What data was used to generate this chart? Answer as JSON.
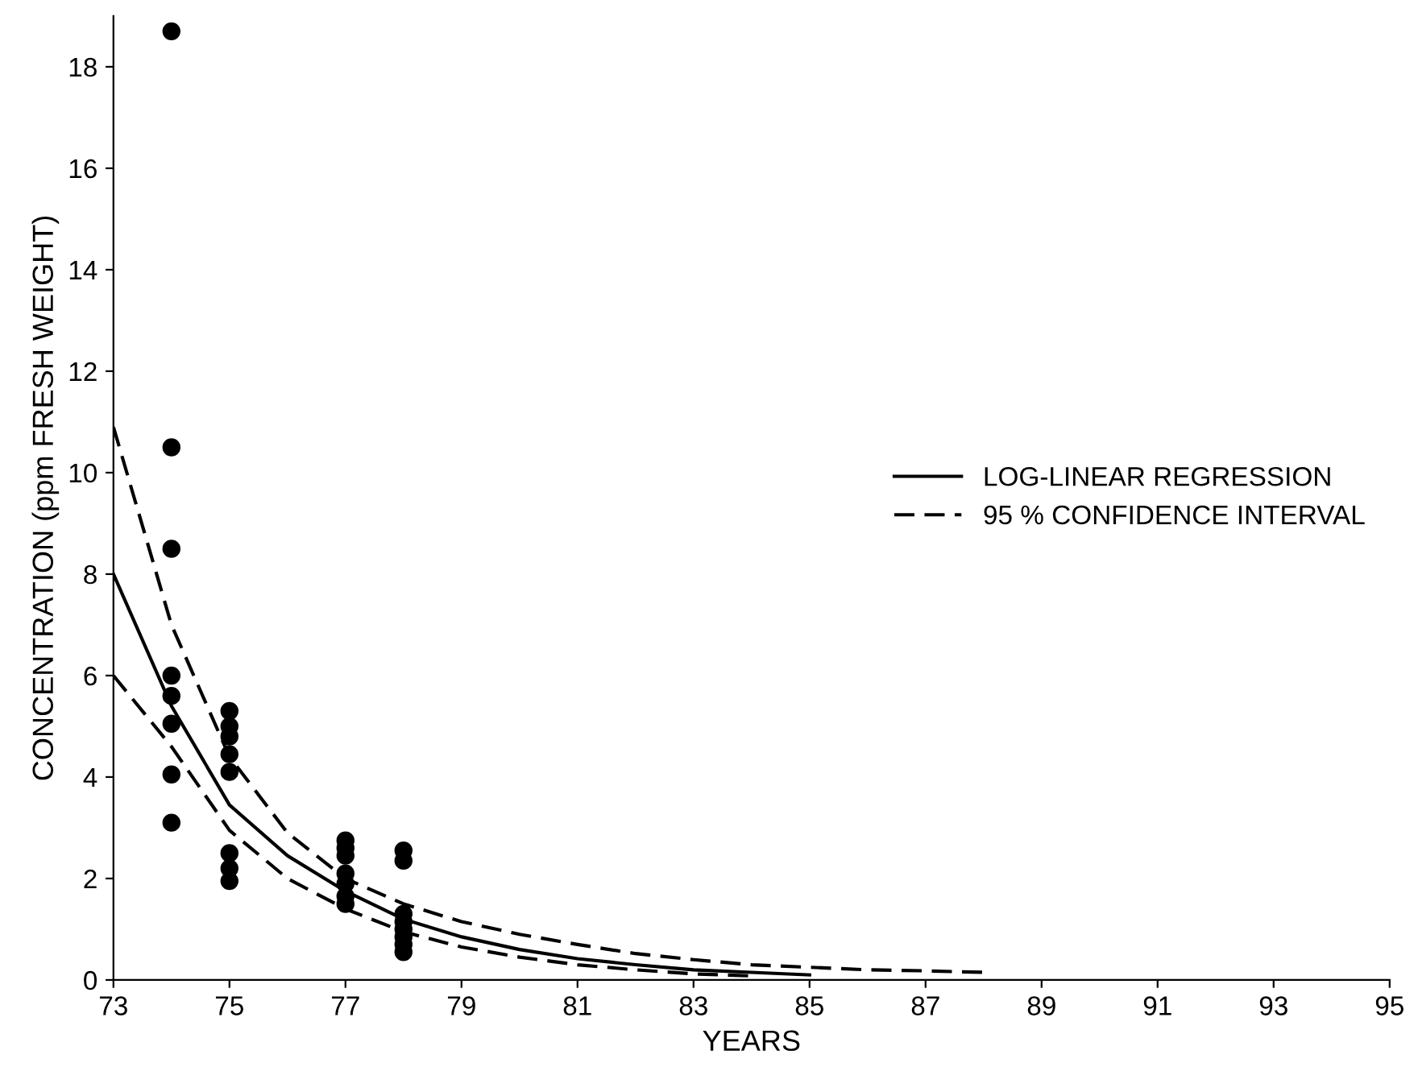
{
  "chart_data": {
    "type": "scatter",
    "xlabel": "YEARS",
    "ylabel": "CONCENTRATION (ppm FRESH WEIGHT)",
    "xlim": [
      73,
      95
    ],
    "xticks": [
      73,
      75,
      77,
      79,
      81,
      83,
      85,
      87,
      89,
      91,
      93,
      95
    ],
    "ylim": [
      0,
      19
    ],
    "yticks": [
      0,
      2,
      4,
      6,
      8,
      10,
      12,
      14,
      16,
      18
    ],
    "grid": false,
    "legend": "right",
    "marker": "circle",
    "series": [
      {
        "color": "#000000",
        "x": [
          74,
          74,
          74,
          74,
          74,
          74,
          74,
          74,
          75,
          75,
          75,
          75,
          75,
          75,
          75,
          75,
          77,
          77,
          77,
          77,
          77,
          77,
          77,
          78,
          78,
          78,
          78,
          78,
          78,
          78,
          78
        ],
        "values": [
          18.7,
          10.5,
          8.5,
          6.0,
          5.6,
          5.05,
          4.05,
          3.1,
          5.3,
          5.0,
          4.8,
          4.45,
          4.1,
          2.5,
          2.2,
          1.95,
          2.75,
          2.6,
          2.45,
          2.1,
          1.9,
          1.65,
          1.5,
          2.55,
          2.35,
          1.3,
          1.15,
          1.0,
          0.85,
          0.7,
          0.55
        ]
      },
      {
        "type": "line",
        "name": "LOG-LINEAR REGRESSION",
        "color": "#000000",
        "line_style": "solid",
        "marker": "none",
        "x": [
          73,
          74,
          75,
          76,
          77,
          78,
          79,
          80,
          81,
          82,
          83,
          84,
          85
        ],
        "values": [
          8.0,
          5.4,
          3.45,
          2.45,
          1.75,
          1.2,
          0.85,
          0.6,
          0.42,
          0.3,
          0.2,
          0.15,
          0.1
        ]
      },
      {
        "type": "line",
        "name": "95 % CONFIDENCE INTERVAL",
        "color": "#000000",
        "line_style": "dashed",
        "marker": "none",
        "x": [
          73,
          74,
          75,
          76,
          77,
          78,
          79,
          80,
          81,
          82,
          83,
          84,
          85,
          86,
          87,
          88
        ],
        "values": [
          10.9,
          7.0,
          4.4,
          2.9,
          2.0,
          1.5,
          1.15,
          0.9,
          0.7,
          0.52,
          0.4,
          0.3,
          0.25,
          0.2,
          0.18,
          0.15
        ]
      },
      {
        "type": "line",
        "color": "#000000",
        "line_style": "dashed",
        "marker": "none",
        "x": [
          73,
          74,
          75,
          76,
          77,
          78,
          79,
          80,
          81,
          82,
          83,
          84
        ],
        "values": [
          6.0,
          4.6,
          2.95,
          2.0,
          1.4,
          0.95,
          0.65,
          0.45,
          0.3,
          0.2,
          0.12,
          0.08
        ]
      }
    ]
  }
}
